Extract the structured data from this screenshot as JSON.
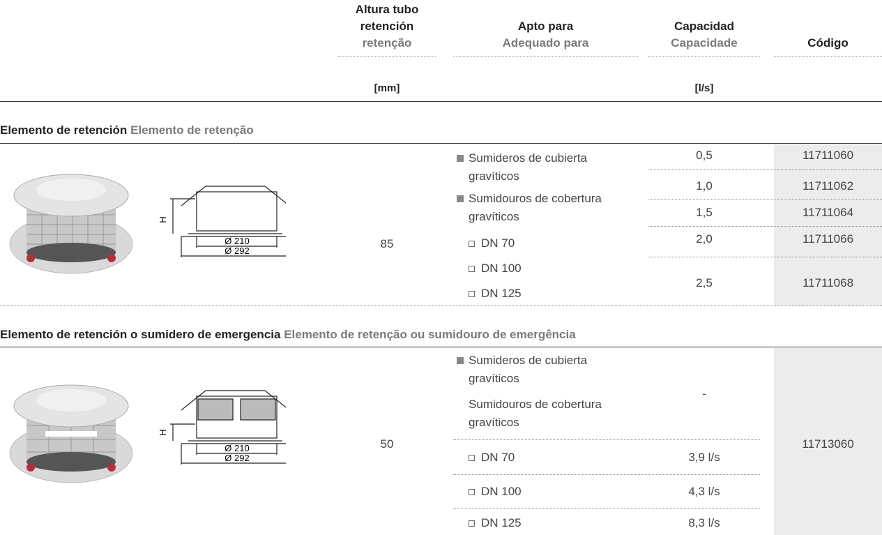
{
  "header": {
    "height": {
      "es": "Altura tubo retención",
      "pt": "retenção",
      "unit": "[mm]"
    },
    "suitable": {
      "es": "Apto para",
      "pt": "Adequado para"
    },
    "capacity": {
      "es": "Capacidad",
      "pt": "Capacidade",
      "unit": "[l/s]"
    },
    "code": "Código"
  },
  "sections": [
    {
      "title_es": "Elemento de retención",
      "title_pt": "Elemento de retenção",
      "drawing": {
        "h": "H",
        "d1": "Ø 210",
        "d2": "Ø 292"
      },
      "height": "85",
      "suitable": {
        "es": "Sumideros de cubierta gravíticos",
        "pt": "Sumidouros de cobertura gravíticos",
        "sizes": [
          "DN 70",
          "DN 100",
          "DN 125"
        ]
      },
      "rows": [
        {
          "capacity": "0,5",
          "code": "11711060"
        },
        {
          "capacity": "1,0",
          "code": "11711062"
        },
        {
          "capacity": "1,5",
          "code": "11711064"
        },
        {
          "capacity": "2,0",
          "code": "11711066"
        },
        {
          "capacity": "2,5",
          "code": "11711068"
        }
      ]
    },
    {
      "title_es": "Elemento de retención o sumidero de emergencia",
      "title_pt": "Elemento de retenção ou sumidouro de emergência",
      "drawing": {
        "h": "H",
        "d1": "Ø 210",
        "d2": "Ø 292"
      },
      "height": "50",
      "suitable": {
        "es": "Sumideros de cubierta gravíticos",
        "pt": "Sumidouros de cobertura gravíticos",
        "capacity": "-"
      },
      "rows": [
        {
          "size": "DN 70",
          "capacity": "3,9 l/s"
        },
        {
          "size": "DN 100",
          "capacity": "4,3 l/s"
        },
        {
          "size": "DN 125",
          "capacity": "8,3 l/s"
        }
      ],
      "code": "11713060"
    }
  ]
}
